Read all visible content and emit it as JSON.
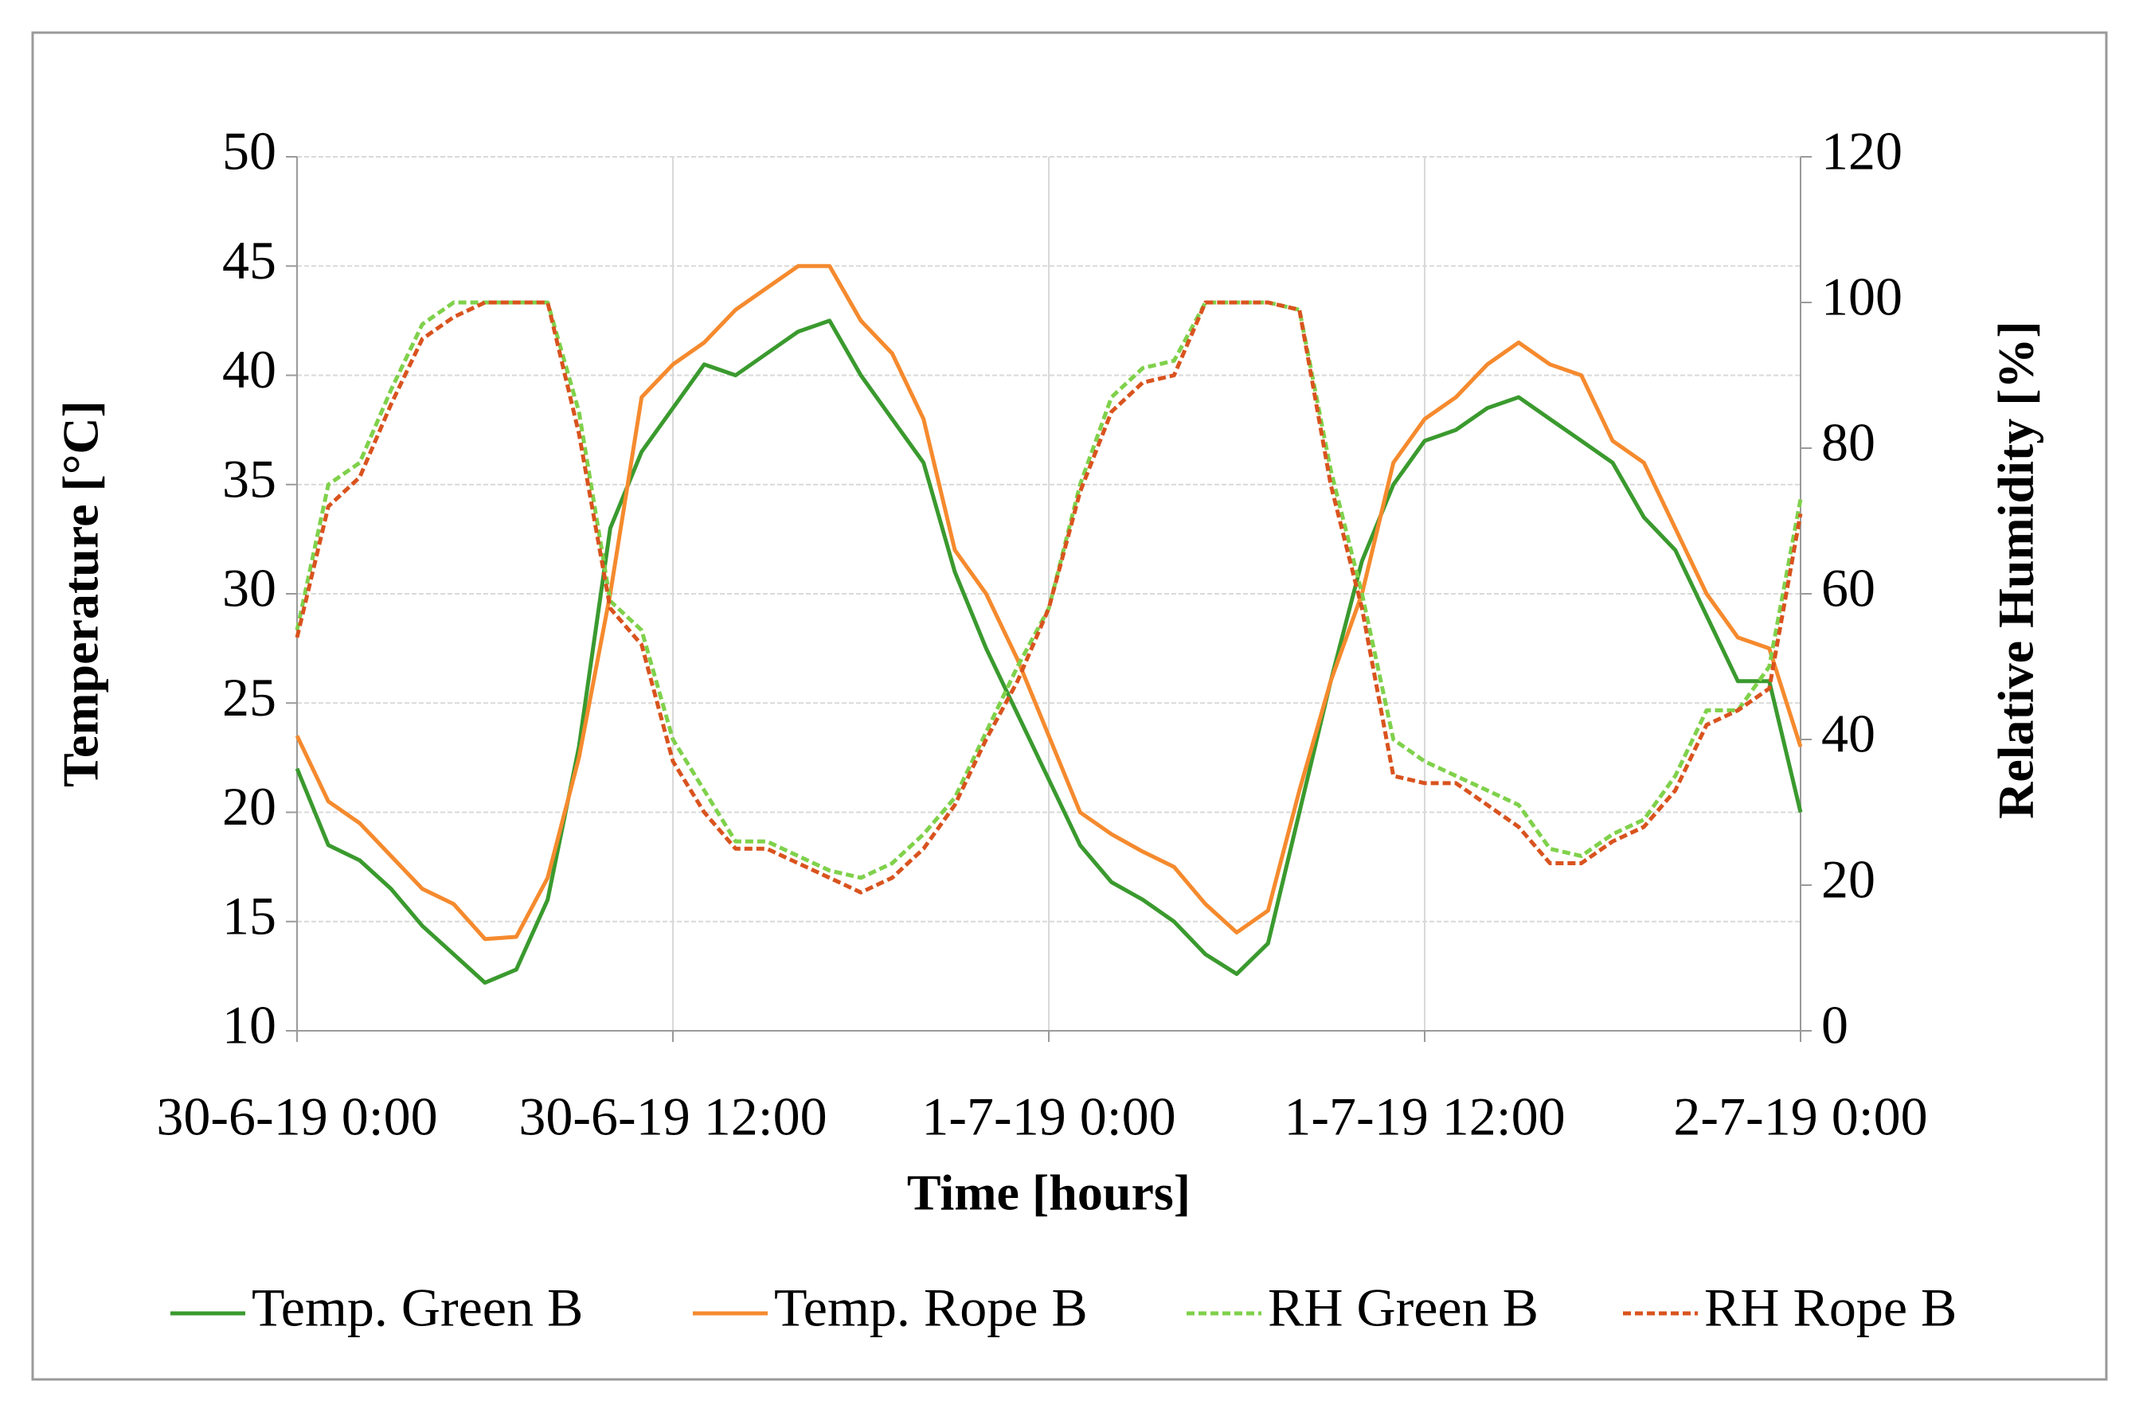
{
  "chart_data": {
    "type": "line",
    "xlabel": "Time [hours]",
    "ylabel": "Temperature [°C]",
    "y2label": "Relative Humidity [%]",
    "x": [
      0,
      1,
      2,
      3,
      4,
      5,
      6,
      7,
      8,
      9,
      10,
      11,
      12,
      13,
      14,
      15,
      16,
      17,
      18,
      19,
      20,
      21,
      22,
      23,
      24,
      25,
      26,
      27,
      28,
      29,
      30,
      31,
      32,
      33,
      34,
      35,
      36,
      37,
      38,
      39,
      40,
      41,
      42,
      43,
      44,
      45,
      46,
      47,
      48
    ],
    "xlim": [
      0,
      48
    ],
    "xticks": [
      {
        "value": 0,
        "label": "30-6-19 0:00"
      },
      {
        "value": 12,
        "label": "30-6-19 12:00"
      },
      {
        "value": 24,
        "label": "1-7-19 0:00"
      },
      {
        "value": 36,
        "label": "1-7-19 12:00"
      },
      {
        "value": 48,
        "label": "2-7-19 0:00"
      }
    ],
    "ylim": [
      10,
      50
    ],
    "yticks": [
      10,
      15,
      20,
      25,
      30,
      35,
      40,
      45,
      50
    ],
    "y2lim": [
      0,
      120
    ],
    "y2ticks": [
      0,
      20,
      40,
      60,
      80,
      100,
      120
    ],
    "grid": true,
    "legend": "bottom",
    "series": [
      {
        "name": "Temp. Green B",
        "color": "#3a9a2e",
        "dash": false,
        "values": [
          22,
          18.5,
          17.8,
          16.5,
          14.8,
          13.5,
          12.2,
          12.8,
          16,
          23,
          33,
          36.5,
          38.5,
          40.5,
          40,
          41,
          42,
          42.5,
          40,
          38,
          36,
          31,
          27.5,
          24.5,
          21.5,
          18.5,
          16.8,
          16,
          15,
          13.5,
          12.6,
          14,
          20,
          26,
          31.5,
          35,
          37,
          37.5,
          38.5,
          39,
          38,
          37,
          36,
          33.5,
          32,
          29,
          26,
          26,
          20
        ]
      },
      {
        "name": "Temp. Rope B",
        "color": "#f58a2e",
        "dash": false,
        "values": [
          23.5,
          20.5,
          19.5,
          18,
          16.5,
          15.8,
          14.2,
          14.3,
          17,
          22.5,
          30,
          39,
          40.5,
          41.5,
          43,
          44,
          45,
          45,
          42.5,
          41,
          38,
          32,
          30,
          27,
          23.5,
          20,
          19,
          18.2,
          17.5,
          15.8,
          14.5,
          15.5,
          21,
          26,
          30,
          36,
          38,
          39,
          40.5,
          41.5,
          40.5,
          40,
          37,
          36,
          33,
          30,
          28,
          27.5,
          23
        ]
      },
      {
        "name": "RH Green B",
        "color": "#7fd14b",
        "dash": true,
        "axis": "y2",
        "values": [
          55,
          75,
          78,
          88,
          97,
          100,
          100,
          100,
          100,
          85,
          59,
          55,
          40,
          33,
          26,
          26,
          24,
          22,
          21,
          23,
          27,
          32,
          41,
          50,
          58,
          75,
          87,
          91,
          92,
          100,
          100,
          100,
          99,
          77,
          60,
          40,
          37,
          35,
          33,
          31,
          25,
          24,
          27,
          29,
          35,
          44,
          44,
          50,
          73
        ]
      },
      {
        "name": "RH Rope B",
        "color": "#d9531e",
        "dash": true,
        "axis": "y2",
        "values": [
          54,
          72,
          76,
          86,
          95,
          98,
          100,
          100,
          100,
          82,
          58,
          53,
          37,
          30,
          25,
          25,
          23,
          21,
          19,
          21,
          25,
          31,
          40,
          48,
          58,
          74,
          85,
          89,
          90,
          100,
          100,
          100,
          99,
          75,
          58,
          35,
          34,
          34,
          31,
          28,
          23,
          23,
          26,
          28,
          33,
          42,
          44,
          47,
          71
        ]
      }
    ]
  }
}
